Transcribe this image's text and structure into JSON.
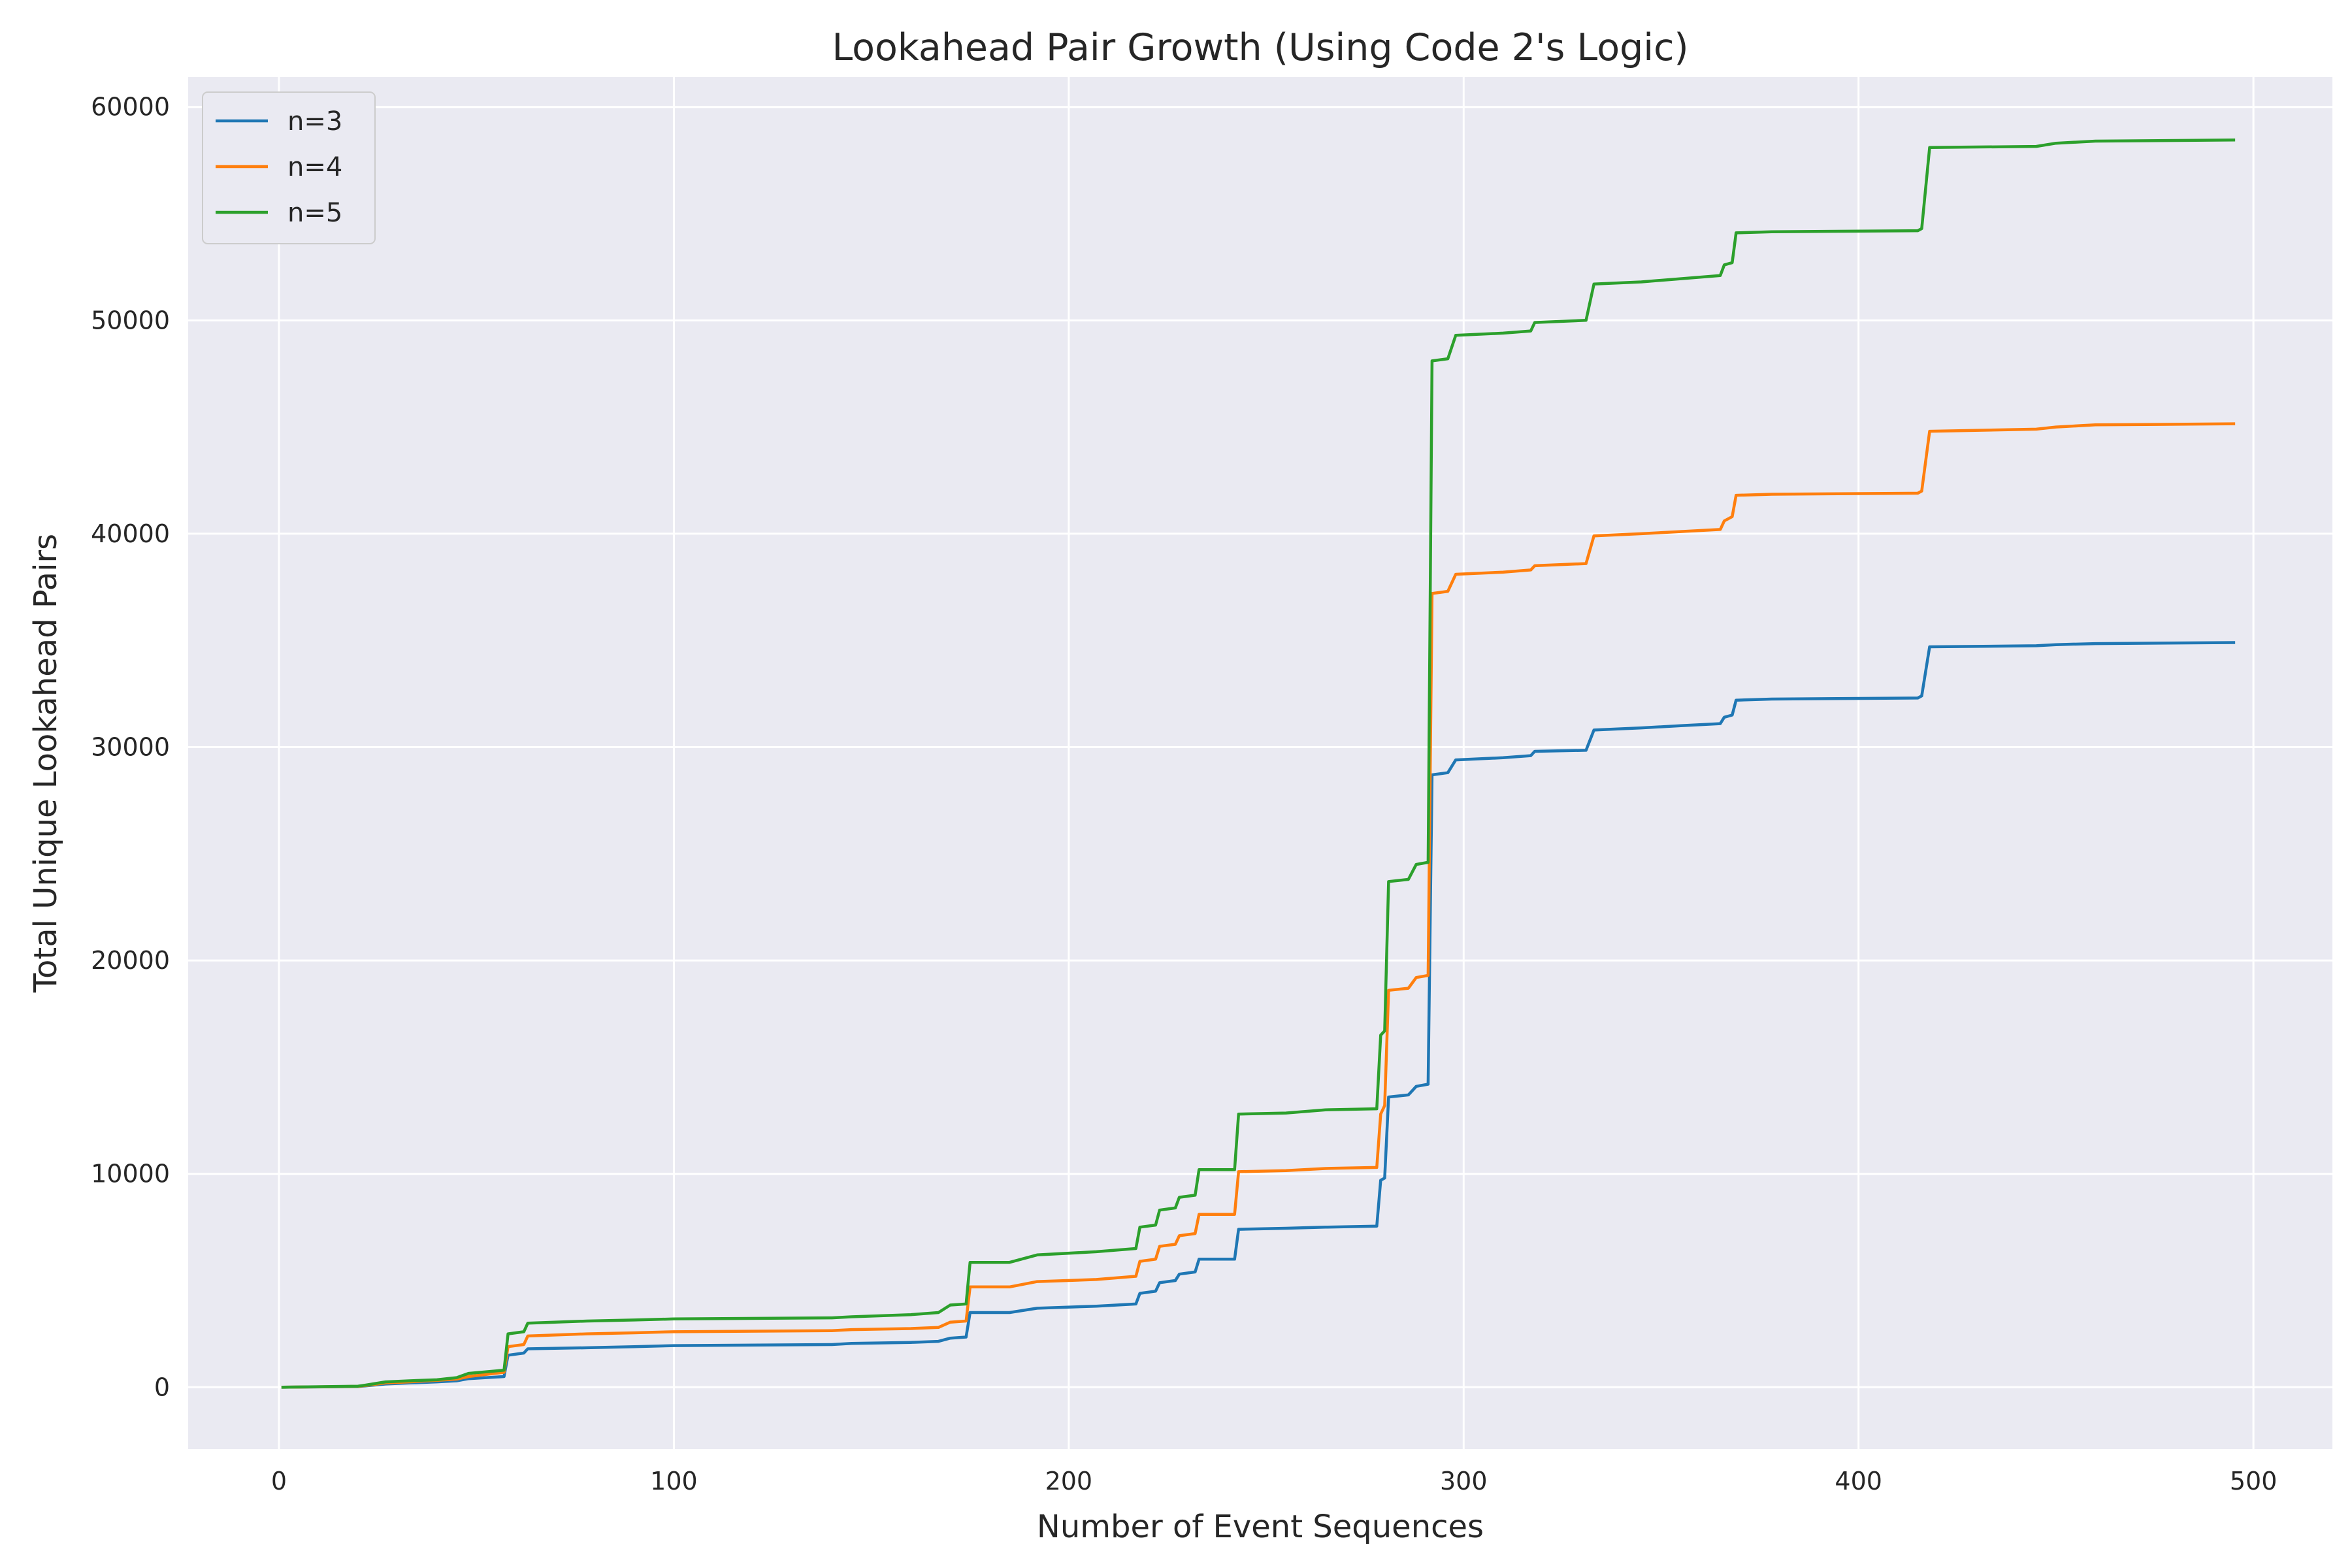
{
  "chart_data": {
    "type": "line",
    "title": "Lookahead Pair Growth (Using Code 2's Logic)",
    "xlabel": "Number of Event Sequences",
    "ylabel": "Total Unique Lookahead Pairs",
    "xlim": [
      -23,
      520
    ],
    "ylim": [
      -2900,
      61400
    ],
    "xticks": [
      0,
      100,
      200,
      300,
      400,
      500
    ],
    "yticks": [
      0,
      10000,
      20000,
      30000,
      40000,
      50000,
      60000
    ],
    "grid": true,
    "legend_position": "upper-left",
    "series": [
      {
        "name": "n=3",
        "color": "#1f77b4",
        "points": [
          [
            1,
            0
          ],
          [
            20,
            30
          ],
          [
            22,
            60
          ],
          [
            27,
            150
          ],
          [
            33,
            200
          ],
          [
            40,
            250
          ],
          [
            45,
            300
          ],
          [
            48,
            400
          ],
          [
            57,
            500
          ],
          [
            58,
            1500
          ],
          [
            62,
            1600
          ],
          [
            63,
            1800
          ],
          [
            78,
            1850
          ],
          [
            90,
            1900
          ],
          [
            100,
            1950
          ],
          [
            140,
            2000
          ],
          [
            145,
            2050
          ],
          [
            160,
            2100
          ],
          [
            167,
            2150
          ],
          [
            170,
            2300
          ],
          [
            174,
            2350
          ],
          [
            175,
            3500
          ],
          [
            185,
            3500
          ],
          [
            192,
            3700
          ],
          [
            207,
            3800
          ],
          [
            217,
            3900
          ],
          [
            218,
            4400
          ],
          [
            222,
            4500
          ],
          [
            223,
            4900
          ],
          [
            227,
            5000
          ],
          [
            228,
            5300
          ],
          [
            232,
            5400
          ],
          [
            233,
            6000
          ],
          [
            242,
            6000
          ],
          [
            243,
            7400
          ],
          [
            255,
            7450
          ],
          [
            265,
            7500
          ],
          [
            278,
            7550
          ],
          [
            279,
            9700
          ],
          [
            280,
            9800
          ],
          [
            281,
            13600
          ],
          [
            286,
            13700
          ],
          [
            288,
            14100
          ],
          [
            291,
            14200
          ],
          [
            292,
            28700
          ],
          [
            296,
            28800
          ],
          [
            298,
            29400
          ],
          [
            310,
            29500
          ],
          [
            317,
            29600
          ],
          [
            318,
            29800
          ],
          [
            331,
            29850
          ],
          [
            333,
            30800
          ],
          [
            345,
            30900
          ],
          [
            355,
            31000
          ],
          [
            365,
            31100
          ],
          [
            366,
            31400
          ],
          [
            368,
            31500
          ],
          [
            369,
            32200
          ],
          [
            378,
            32250
          ],
          [
            415,
            32300
          ],
          [
            416,
            32400
          ],
          [
            418,
            34700
          ],
          [
            445,
            34750
          ],
          [
            450,
            34800
          ],
          [
            460,
            34850
          ],
          [
            495,
            34900
          ]
        ]
      },
      {
        "name": "n=4",
        "color": "#ff7f0e",
        "points": [
          [
            1,
            0
          ],
          [
            20,
            40
          ],
          [
            22,
            80
          ],
          [
            27,
            200
          ],
          [
            33,
            250
          ],
          [
            40,
            320
          ],
          [
            45,
            380
          ],
          [
            48,
            500
          ],
          [
            57,
            700
          ],
          [
            58,
            1900
          ],
          [
            62,
            2000
          ],
          [
            63,
            2400
          ],
          [
            78,
            2500
          ],
          [
            90,
            2550
          ],
          [
            100,
            2600
          ],
          [
            140,
            2650
          ],
          [
            145,
            2700
          ],
          [
            160,
            2750
          ],
          [
            167,
            2800
          ],
          [
            170,
            3050
          ],
          [
            174,
            3100
          ],
          [
            175,
            4700
          ],
          [
            185,
            4700
          ],
          [
            192,
            4950
          ],
          [
            207,
            5050
          ],
          [
            217,
            5200
          ],
          [
            218,
            5900
          ],
          [
            222,
            6000
          ],
          [
            223,
            6600
          ],
          [
            227,
            6700
          ],
          [
            228,
            7100
          ],
          [
            232,
            7200
          ],
          [
            233,
            8100
          ],
          [
            242,
            8100
          ],
          [
            243,
            10100
          ],
          [
            255,
            10150
          ],
          [
            265,
            10250
          ],
          [
            278,
            10300
          ],
          [
            279,
            12800
          ],
          [
            280,
            13200
          ],
          [
            281,
            18600
          ],
          [
            286,
            18700
          ],
          [
            288,
            19200
          ],
          [
            291,
            19300
          ],
          [
            292,
            37200
          ],
          [
            296,
            37300
          ],
          [
            298,
            38100
          ],
          [
            310,
            38200
          ],
          [
            317,
            38300
          ],
          [
            318,
            38500
          ],
          [
            331,
            38600
          ],
          [
            333,
            39900
          ],
          [
            345,
            40000
          ],
          [
            355,
            40100
          ],
          [
            365,
            40200
          ],
          [
            366,
            40600
          ],
          [
            368,
            40800
          ],
          [
            369,
            41800
          ],
          [
            378,
            41850
          ],
          [
            415,
            41900
          ],
          [
            416,
            42000
          ],
          [
            418,
            44800
          ],
          [
            445,
            44900
          ],
          [
            450,
            45000
          ],
          [
            460,
            45100
          ],
          [
            495,
            45150
          ]
        ]
      },
      {
        "name": "n=5",
        "color": "#2ca02c",
        "points": [
          [
            1,
            0
          ],
          [
            20,
            50
          ],
          [
            22,
            100
          ],
          [
            27,
            250
          ],
          [
            33,
            300
          ],
          [
            40,
            350
          ],
          [
            45,
            450
          ],
          [
            48,
            650
          ],
          [
            57,
            800
          ],
          [
            58,
            2500
          ],
          [
            62,
            2600
          ],
          [
            63,
            3000
          ],
          [
            78,
            3100
          ],
          [
            90,
            3150
          ],
          [
            100,
            3200
          ],
          [
            140,
            3250
          ],
          [
            145,
            3300
          ],
          [
            160,
            3400
          ],
          [
            167,
            3500
          ],
          [
            170,
            3850
          ],
          [
            174,
            3900
          ],
          [
            175,
            5850
          ],
          [
            185,
            5850
          ],
          [
            192,
            6200
          ],
          [
            207,
            6350
          ],
          [
            217,
            6500
          ],
          [
            218,
            7500
          ],
          [
            222,
            7600
          ],
          [
            223,
            8300
          ],
          [
            227,
            8400
          ],
          [
            228,
            8900
          ],
          [
            232,
            9000
          ],
          [
            233,
            10200
          ],
          [
            242,
            10200
          ],
          [
            243,
            12800
          ],
          [
            255,
            12850
          ],
          [
            265,
            13000
          ],
          [
            278,
            13050
          ],
          [
            279,
            16500
          ],
          [
            280,
            16700
          ],
          [
            281,
            23700
          ],
          [
            286,
            23800
          ],
          [
            288,
            24500
          ],
          [
            291,
            24600
          ],
          [
            292,
            48100
          ],
          [
            296,
            48200
          ],
          [
            298,
            49300
          ],
          [
            310,
            49400
          ],
          [
            317,
            49500
          ],
          [
            318,
            49900
          ],
          [
            331,
            50000
          ],
          [
            333,
            51700
          ],
          [
            345,
            51800
          ],
          [
            355,
            51950
          ],
          [
            365,
            52100
          ],
          [
            366,
            52600
          ],
          [
            368,
            52700
          ],
          [
            369,
            54100
          ],
          [
            378,
            54150
          ],
          [
            415,
            54200
          ],
          [
            416,
            54300
          ],
          [
            418,
            58100
          ],
          [
            445,
            58150
          ],
          [
            450,
            58300
          ],
          [
            460,
            58400
          ],
          [
            495,
            58450
          ]
        ]
      }
    ]
  }
}
